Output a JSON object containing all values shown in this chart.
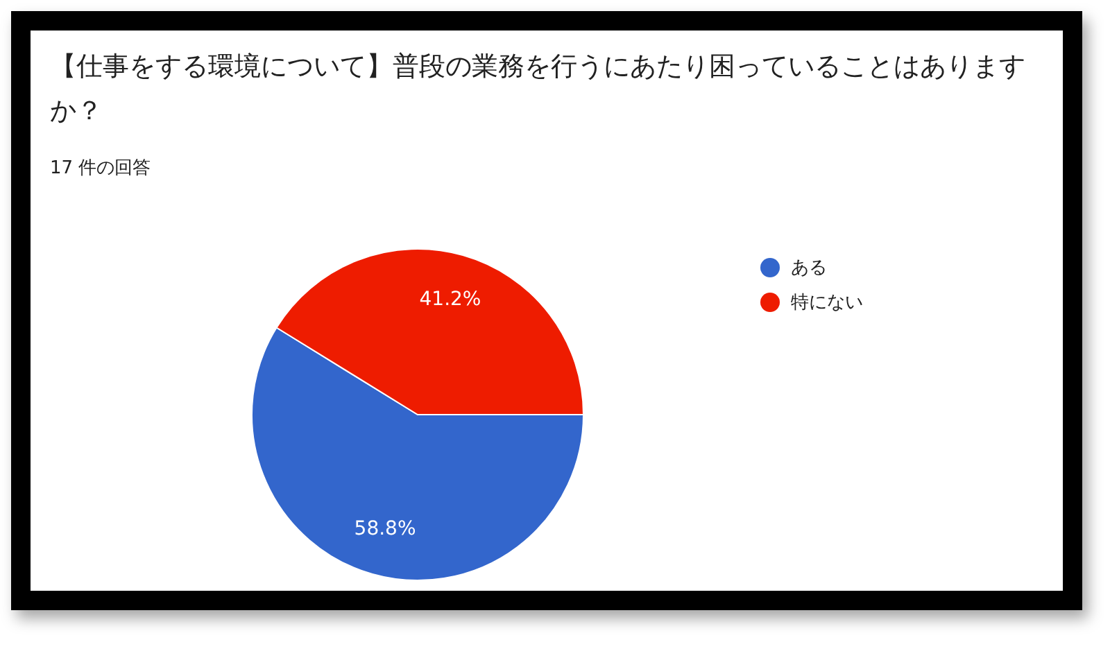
{
  "chart_data": {
    "type": "pie",
    "title": "【仕事をする環境について】普段の業務を行うにあたり困っていることはありますか？",
    "subtitle": "17 件の回答",
    "categories": [
      "ある",
      "特にない"
    ],
    "values": [
      58.8,
      41.2
    ],
    "value_labels": [
      "58.8%",
      "41.2%"
    ],
    "colors": [
      "#3366cc",
      "#ee1c00"
    ],
    "legend": "right"
  }
}
